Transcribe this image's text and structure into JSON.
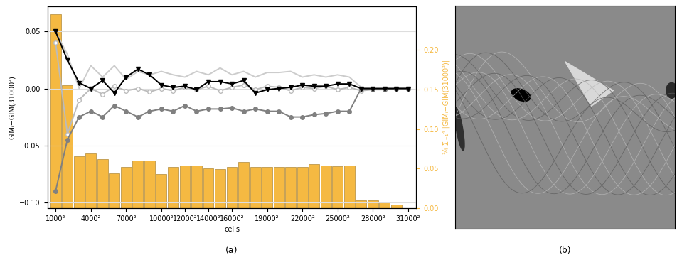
{
  "chart_data": [
    {
      "type": "combo",
      "caption": "(a)",
      "x_label": "cells",
      "y_label": "GIMᵢ−GIM(31000²)",
      "y2_label": "¼ Σᵢ₌₁⁴ |GIMᵢ−GIM(31000²)|",
      "x": [
        1000,
        2000,
        3000,
        4000,
        5000,
        6000,
        7000,
        8000,
        9000,
        10000,
        11000,
        12000,
        13000,
        14000,
        15000,
        16000,
        17000,
        18000,
        19000,
        20000,
        21000,
        22000,
        23000,
        24000,
        25000,
        26000,
        27000,
        28000,
        29000,
        30000,
        31000
      ],
      "xlim": [
        300,
        31700
      ],
      "xticks": [
        {
          "value": 1000,
          "label": "1000²"
        },
        {
          "value": 4000,
          "label": "4000²"
        },
        {
          "value": 7000,
          "label": "7000²"
        },
        {
          "value": 10000,
          "label": "10000²"
        },
        {
          "value": 12000,
          "label": "12000²"
        },
        {
          "value": 14000,
          "label": "14000²"
        },
        {
          "value": 16000,
          "label": "16000²"
        },
        {
          "value": 19000,
          "label": "19000²"
        },
        {
          "value": 22000,
          "label": "22000²"
        },
        {
          "value": 25000,
          "label": "25000²"
        },
        {
          "value": 28000,
          "label": "28000²"
        },
        {
          "value": 31000,
          "label": "31000²"
        }
      ],
      "ylim": [
        -0.105,
        0.072
      ],
      "yticks": [
        {
          "value": -0.1,
          "label": "−0.10"
        },
        {
          "value": -0.05,
          "label": "−0.05"
        },
        {
          "value": 0,
          "label": "0.00"
        },
        {
          "value": 0.05,
          "label": "0.05"
        }
      ],
      "y2lim": [
        0,
        0.255
      ],
      "y2ticks": [
        {
          "value": 0,
          "label": "0.00"
        },
        {
          "value": 0.05,
          "label": "0.05"
        },
        {
          "value": 0.1,
          "label": "0.10"
        },
        {
          "value": 0.15,
          "label": "0.15"
        },
        {
          "value": 0.2,
          "label": "0.20"
        }
      ],
      "grid": true,
      "series": [
        {
          "type": "bar",
          "axis": "y2",
          "color": "#f5b942",
          "values": [
            0.245,
            0.155,
            0.065,
            0.069,
            0.062,
            0.044,
            0.052,
            0.06,
            0.06,
            0.043,
            0.052,
            0.054,
            0.054,
            0.05,
            0.049,
            0.052,
            0.058,
            0.052,
            0.052,
            0.052,
            0.052,
            0.052,
            0.056,
            0.054,
            0.053,
            0.054,
            0.01,
            0.01,
            0.007,
            0.004,
            0.0
          ]
        },
        {
          "type": "line",
          "color": "#cccccc",
          "marker": "none",
          "line_style": "solid",
          "values": [
            0.05,
            0.03,
            0.0,
            0.02,
            0.01,
            0.02,
            0.008,
            0.015,
            0.012,
            0.015,
            0.012,
            0.01,
            0.015,
            0.012,
            0.018,
            0.012,
            0.015,
            0.01,
            0.014,
            0.014,
            0.015,
            0.01,
            0.012,
            0.01,
            0.012,
            0.01,
            0.001,
            0.0,
            0.0,
            0.0,
            0.0
          ]
        },
        {
          "type": "line",
          "color": "#bbbbbb",
          "marker": "open_circle",
          "line_style": "solid",
          "values": [
            0.04,
            -0.04,
            -0.01,
            0.0,
            -0.005,
            0.002,
            -0.002,
            0.0,
            -0.003,
            0.0,
            -0.002,
            0.001,
            -0.001,
            0.002,
            -0.002,
            0.001,
            0.003,
            -0.001,
            0.002,
            0.001,
            -0.002,
            0.001,
            0.0,
            0.002,
            -0.001,
            0.001,
            -0.002,
            -0.001,
            0.0,
            0.0,
            0.0
          ]
        },
        {
          "type": "line",
          "color": "#808080",
          "marker": "circle",
          "line_style": "solid",
          "values": [
            -0.09,
            -0.045,
            -0.025,
            -0.02,
            -0.025,
            -0.015,
            -0.02,
            -0.025,
            -0.02,
            -0.018,
            -0.02,
            -0.015,
            -0.02,
            -0.018,
            -0.018,
            -0.017,
            -0.02,
            -0.018,
            -0.02,
            -0.02,
            -0.025,
            -0.025,
            -0.023,
            -0.022,
            -0.02,
            -0.02,
            0.0,
            -0.001,
            -0.001,
            0.0,
            0.0
          ]
        },
        {
          "type": "line",
          "color": "#000000",
          "marker": "triangle_down",
          "line_style": "solid",
          "values": [
            0.05,
            0.025,
            0.005,
            0.0,
            0.007,
            -0.004,
            0.01,
            0.017,
            0.012,
            0.003,
            0.001,
            0.002,
            -0.001,
            0.006,
            0.006,
            0.004,
            0.007,
            -0.004,
            -0.001,
            0.0,
            0.001,
            0.003,
            0.002,
            0.002,
            0.004,
            0.004,
            0.0,
            0.0,
            0.0,
            0.0,
            0.0
          ]
        }
      ]
    },
    {
      "type": "image",
      "caption": "(b)",
      "tick_labels": false
    }
  ]
}
